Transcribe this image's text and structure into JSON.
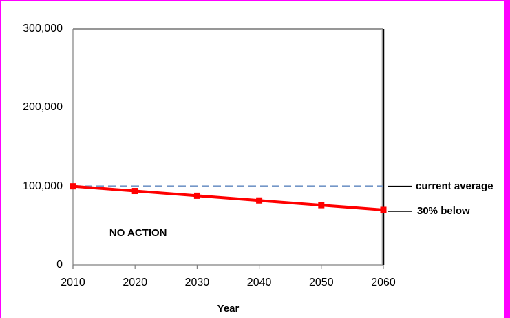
{
  "window": {
    "border_color": "#FF00FF",
    "background_color": "#FFFFFF"
  },
  "chart_data": {
    "type": "line",
    "title": "",
    "xlabel": "Year",
    "ylabel": "",
    "x": [
      2010,
      2020,
      2030,
      2040,
      2050,
      2060
    ],
    "xtick_labels": [
      "2010",
      "2020",
      "2030",
      "2040",
      "2050",
      "2060"
    ],
    "yticks": [
      0,
      100000,
      200000,
      300000
    ],
    "ytick_labels": [
      "0",
      "100,000",
      "200,000",
      "300,000"
    ],
    "xlim": [
      2010,
      2060
    ],
    "ylim": [
      0,
      300000
    ],
    "grid": false,
    "legend": "none",
    "series": [
      {
        "name": "NO ACTION",
        "values": [
          100000,
          94000,
          88000,
          82000,
          76000,
          70000
        ],
        "color": "#FF0000",
        "marker": "square",
        "end_label": "30% below"
      }
    ],
    "reference_line": {
      "label": "current average",
      "value": 100000,
      "color": "#7396C8",
      "style": "dashed"
    },
    "annotations": [
      {
        "text": "NO ACTION",
        "x": 2020.5,
        "y": 40000
      }
    ]
  },
  "colors": {
    "axis_gray": "#808080",
    "axis_top": "#595959",
    "axis_right_black": "#000000",
    "axis_right_shadow": "#b8b8b8",
    "leader_line": "#000000",
    "text": "#000000"
  }
}
